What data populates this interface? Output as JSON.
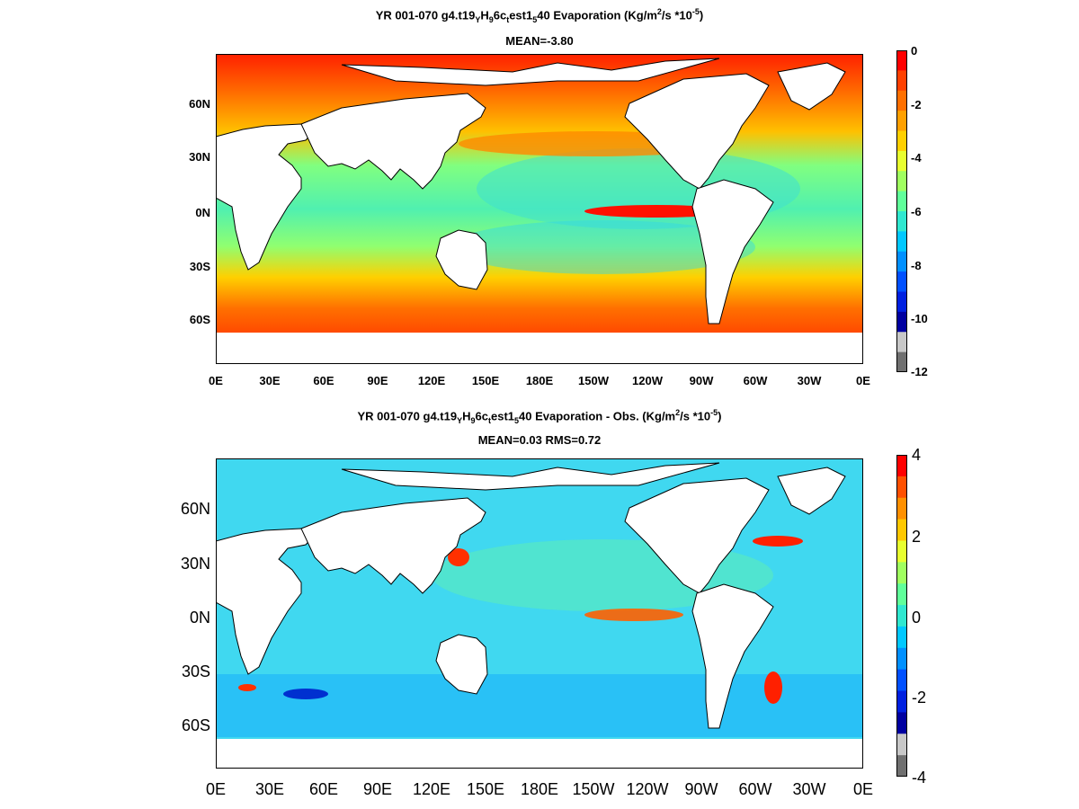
{
  "panel1": {
    "title_a": "YR 001-070 g4.t19",
    "title_sub1": "Y",
    "title_b": "H",
    "title_sub2": "9",
    "title_c": "6c",
    "title_sub3": "t",
    "title_d": "est1",
    "title_sub4": "5",
    "title_e": "40  Evaporation (Kg/m",
    "title_sup1": "2",
    "title_f": "/s *10",
    "title_sup2": "-5",
    "title_g": ")",
    "stats": "MEAN=-3.80",
    "x_ticks": [
      "0E",
      "30E",
      "60E",
      "90E",
      "120E",
      "150E",
      "180E",
      "150W",
      "120W",
      "90W",
      "60W",
      "30W",
      "0E"
    ],
    "y_ticks": [
      "60N",
      "30N",
      "0N",
      "30S",
      "60S"
    ],
    "colorbar_ticks": [
      "0",
      "-2",
      "-4",
      "-6",
      "-8",
      "-10",
      "-12"
    ]
  },
  "panel2": {
    "title_a": "YR 001-070 g4.t19",
    "title_sub1": "Y",
    "title_b": "H",
    "title_sub2": "9",
    "title_c": "6c",
    "title_sub3": "t",
    "title_d": "est1",
    "title_sub4": "5",
    "title_e": "40 Evaporation - Obs. (Kg/m",
    "title_sup1": "2",
    "title_f": "/s *10",
    "title_sup2": "-5",
    "title_g": ")",
    "stats": "MEAN=0.03   RMS=0.72",
    "x_ticks": [
      "0E",
      "30E",
      "60E",
      "90E",
      "120E",
      "150E",
      "180E",
      "150W",
      "120W",
      "90W",
      "60W",
      "30W",
      "0E"
    ],
    "y_ticks": [
      "60N",
      "30N",
      "0N",
      "30S",
      "60S"
    ],
    "colorbar_ticks": [
      "4",
      "2",
      "0",
      "-2",
      "-4"
    ]
  },
  "colors": {
    "panel1_scale": [
      "#ff0000",
      "#ff4000",
      "#ff7000",
      "#ffa000",
      "#ffd000",
      "#e8ff30",
      "#a0ff60",
      "#60ff9a",
      "#30e8d0",
      "#00c8ff",
      "#0090ff",
      "#0050ff",
      "#0020e0",
      "#0000a0",
      "#c8c8c8",
      "#707070"
    ],
    "panel2_scale": [
      "#ff0000",
      "#ff5000",
      "#ff9000",
      "#ffc800",
      "#e8ff30",
      "#a0ff60",
      "#60ff9a",
      "#30e8d0",
      "#00c8ff",
      "#0090ff",
      "#0050ff",
      "#0020e0",
      "#0000a0",
      "#c8c8c8",
      "#707070"
    ]
  }
}
